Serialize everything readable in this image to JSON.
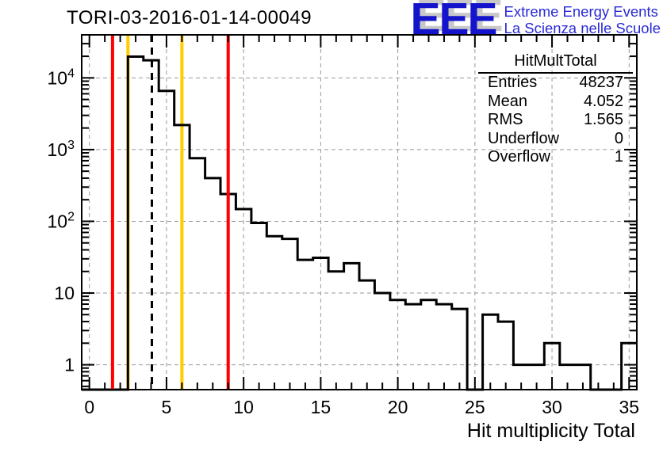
{
  "header": {
    "title": "TORI-03-2016-01-14-00049"
  },
  "logo": {
    "acronym": "EEE",
    "line1": "Extreme Energy Events",
    "line2": "La Scienza nelle Scuole",
    "acronym_color": "#1414cc",
    "shadow_color": "#c8c8c8",
    "text_color": "#2a2ad4"
  },
  "stats_box": {
    "title": "HitMultTotal",
    "rows": [
      {
        "label": "Entries",
        "value": "48237"
      },
      {
        "label": "Mean",
        "value": "4.052"
      },
      {
        "label": "RMS",
        "value": "1.565"
      },
      {
        "label": "Underflow",
        "value": "0"
      },
      {
        "label": "Overflow",
        "value": "1"
      }
    ]
  },
  "chart_data": {
    "type": "bar",
    "subtype": "step-histogram",
    "title": "TORI-03-2016-01-14-00049",
    "xlabel": "Hit multiplicity Total",
    "ylabel": "",
    "yscale": "log",
    "grid": "dashed-gray-at-major-ticks",
    "xlim": [
      -0.5,
      35.5
    ],
    "ylim": [
      0.45,
      39800
    ],
    "bin_width": 1,
    "x_first_bin_center": 0,
    "counts": [
      0,
      0,
      0,
      19800,
      17600,
      6600,
      2200,
      760,
      400,
      240,
      148,
      95,
      62,
      57,
      29,
      31,
      20,
      26,
      15,
      10,
      8,
      7,
      8,
      7,
      6,
      0,
      5,
      4,
      1,
      1,
      2,
      1,
      1,
      0,
      0,
      2
    ],
    "x_major_ticks": [
      0,
      5,
      10,
      15,
      20,
      25,
      30,
      35
    ],
    "y_major_ticks": [
      1,
      10,
      100,
      1000,
      10000
    ],
    "y_tick_labels": [
      "1",
      "10",
      "10^2",
      "10^3",
      "10^4"
    ],
    "line_color": "#000000",
    "grid_color": "#999999",
    "marker_lines": [
      {
        "x": 2.5,
        "color": "#ffcc00",
        "style": "solid",
        "layer": "under"
      },
      {
        "x": 6,
        "color": "#ffcc00",
        "style": "solid",
        "layer": "under"
      },
      {
        "x": 1.5,
        "color": "#ff0000",
        "style": "solid",
        "layer": "over"
      },
      {
        "x": 9,
        "color": "#ff0000",
        "style": "solid",
        "layer": "over"
      },
      {
        "x": 4.052,
        "color": "#000000",
        "style": "dashed",
        "layer": "over"
      }
    ]
  }
}
